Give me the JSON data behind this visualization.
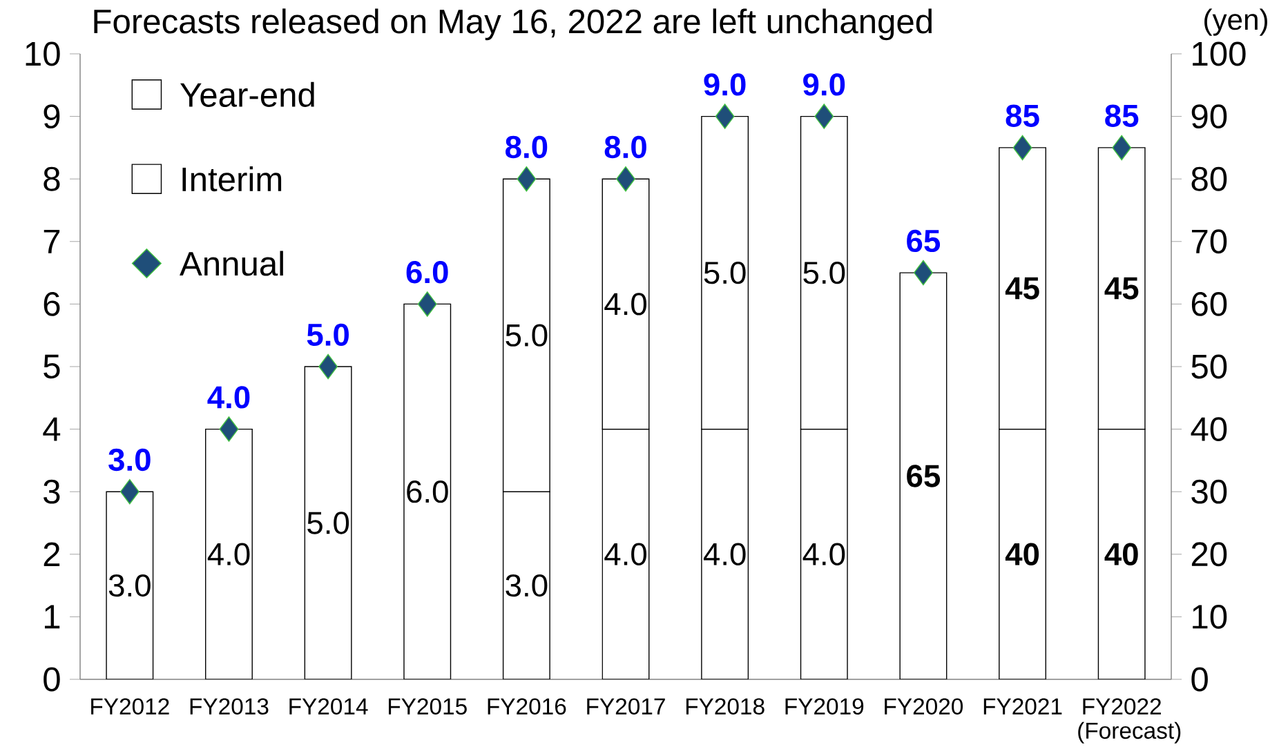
{
  "chart_data": {
    "type": "bar",
    "stacked": true,
    "title": "Forecasts released on May 16, 2022 are left unchanged",
    "y2label": "(yen)",
    "categories": [
      "FY2012",
      "FY2013",
      "FY2014",
      "FY2015",
      "FY2016",
      "FY2017",
      "FY2018",
      "FY2019",
      "FY2020",
      "FY2021",
      "FY2022 (Forecast)"
    ],
    "ylim": [
      0,
      10
    ],
    "yticks": [
      0,
      1,
      2,
      3,
      4,
      5,
      6,
      7,
      8,
      9,
      10
    ],
    "y2lim": [
      0,
      100
    ],
    "y2ticks": [
      0,
      10,
      20,
      30,
      40,
      50,
      60,
      70,
      80,
      90,
      100
    ],
    "legend": "top left",
    "grid": false,
    "series": [
      {
        "name": "Interim",
        "type": "bar",
        "axis": "y",
        "color": "#ffffff",
        "values": [
          null,
          null,
          null,
          null,
          3,
          4,
          4,
          4,
          null,
          null,
          null
        ],
        "value_labels": [
          null,
          null,
          null,
          null,
          "3.0",
          "4.0",
          "4.0",
          "4.0",
          null,
          null,
          null
        ]
      },
      {
        "name": "Year-end",
        "type": "bar",
        "axis": "y",
        "color": "#ffffff",
        "values": [
          3,
          4,
          5,
          6,
          5,
          4,
          5,
          5,
          null,
          null,
          null
        ],
        "value_labels": [
          "3.0",
          "4.0",
          "5.0",
          "6.0",
          "5.0",
          "4.0",
          "5.0",
          "5.0",
          null,
          null,
          null
        ]
      },
      {
        "name": "Annual",
        "type": "scatter",
        "axis": "y",
        "marker": "diamond",
        "color": "#1f4e79",
        "values": [
          3,
          4,
          5,
          6,
          8,
          8,
          9,
          9,
          null,
          null,
          null
        ],
        "value_labels": [
          "3.0",
          "4.0",
          "5.0",
          "6.0",
          "8.0",
          "8.0",
          "9.0",
          "9.0",
          null,
          null,
          null
        ]
      },
      {
        "type": "bar",
        "axis": "y2",
        "color": "#ffffff",
        "values": [
          null,
          null,
          null,
          null,
          null,
          null,
          null,
          null,
          null,
          40,
          40
        ],
        "value_labels": [
          null,
          null,
          null,
          null,
          null,
          null,
          null,
          null,
          null,
          "40",
          "40"
        ]
      },
      {
        "type": "bar",
        "axis": "y2",
        "color": "#ffffff",
        "values": [
          null,
          null,
          null,
          null,
          null,
          null,
          null,
          null,
          65,
          45,
          45
        ],
        "value_labels": [
          null,
          null,
          null,
          null,
          null,
          null,
          null,
          null,
          "65",
          "45",
          "45"
        ]
      },
      {
        "type": "scatter",
        "axis": "y2",
        "marker": "diamond",
        "color": "#1f4e79",
        "values": [
          null,
          null,
          null,
          null,
          null,
          null,
          null,
          null,
          65,
          85,
          85
        ],
        "value_labels": [
          null,
          null,
          null,
          null,
          null,
          null,
          null,
          null,
          "65",
          "85",
          "85"
        ]
      }
    ]
  }
}
